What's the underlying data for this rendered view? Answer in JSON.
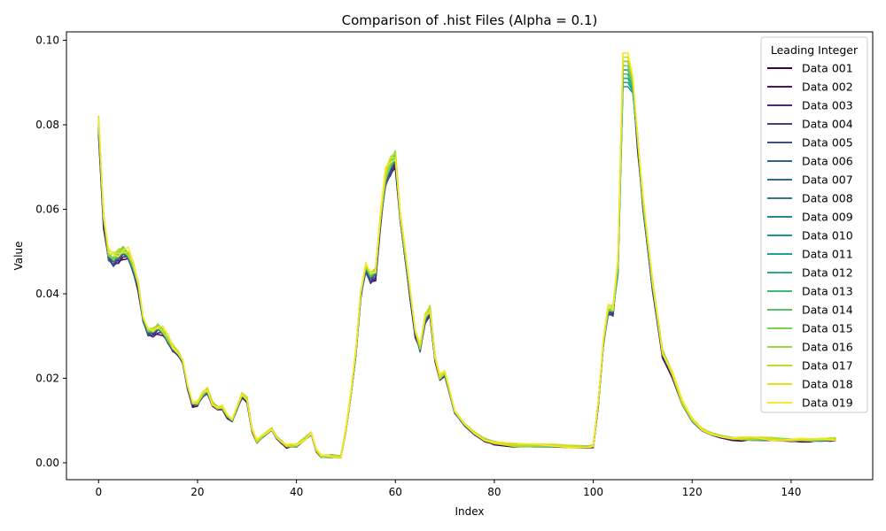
{
  "chart_data": {
    "type": "line",
    "title": "Comparison of .hist Files (Alpha = 0.1)",
    "xlabel": "Index",
    "ylabel": "Value",
    "xlim": [
      -6.5,
      156.5
    ],
    "ylim": [
      -0.004,
      0.102
    ],
    "xticks": [
      0,
      20,
      40,
      60,
      80,
      100,
      120,
      140
    ],
    "xtick_labels": [
      "0",
      "20",
      "40",
      "60",
      "80",
      "100",
      "120",
      "140"
    ],
    "yticks": [
      0.0,
      0.02,
      0.04,
      0.06,
      0.08,
      0.1
    ],
    "ytick_labels": [
      "0.00",
      "0.02",
      "0.04",
      "0.06",
      "0.08",
      "0.10"
    ],
    "grid": false,
    "legend": {
      "title": "Leading Integer",
      "placement": "top-right"
    },
    "base_curve": {
      "x": [
        0,
        1,
        2,
        3,
        4,
        5,
        6,
        7,
        8,
        9,
        10,
        11,
        12,
        13,
        14,
        15,
        16,
        17,
        18,
        19,
        20,
        21,
        22,
        23,
        24,
        25,
        26,
        27,
        28,
        29,
        30,
        31,
        32,
        33,
        34,
        35,
        36,
        37,
        38,
        39,
        40,
        41,
        42,
        43,
        44,
        45,
        46,
        47,
        48,
        49,
        50,
        51,
        52,
        53,
        54,
        55,
        56,
        57,
        58,
        59,
        60,
        61,
        62,
        63,
        64,
        65,
        66,
        67,
        68,
        69,
        70,
        72,
        74,
        76,
        78,
        80,
        84,
        88,
        92,
        96,
        99,
        100,
        101,
        102,
        103,
        104,
        105,
        106,
        107,
        108,
        109,
        110,
        112,
        114,
        116,
        118,
        120,
        122,
        124,
        126,
        128,
        130,
        132,
        134,
        136,
        138,
        140,
        142,
        144,
        146,
        148,
        149
      ],
      "y": [
        0.08,
        0.058,
        0.049,
        0.048,
        0.049,
        0.05,
        0.049,
        0.046,
        0.042,
        0.034,
        0.031,
        0.031,
        0.032,
        0.031,
        0.029,
        0.027,
        0.026,
        0.024,
        0.018,
        0.014,
        0.014,
        0.016,
        0.017,
        0.014,
        0.013,
        0.013,
        0.011,
        0.01,
        0.013,
        0.016,
        0.015,
        0.008,
        0.005,
        0.006,
        0.007,
        0.008,
        0.006,
        0.005,
        0.004,
        0.004,
        0.004,
        0.005,
        0.006,
        0.007,
        0.003,
        0.0015,
        0.0015,
        0.0015,
        0.0015,
        0.0015,
        0.008,
        0.016,
        0.026,
        0.04,
        0.046,
        0.044,
        0.045,
        0.058,
        0.067,
        0.07,
        0.072,
        0.058,
        0.049,
        0.04,
        0.031,
        0.027,
        0.034,
        0.036,
        0.025,
        0.02,
        0.021,
        0.012,
        0.009,
        0.007,
        0.0055,
        0.0048,
        0.0041,
        0.004,
        0.004,
        0.0038,
        0.0038,
        0.004,
        0.014,
        0.028,
        0.036,
        0.036,
        0.045,
        0.09,
        0.09,
        0.088,
        0.076,
        0.062,
        0.042,
        0.026,
        0.021,
        0.014,
        0.01,
        0.0078,
        0.0068,
        0.0062,
        0.0058,
        0.0057,
        0.0056,
        0.0056,
        0.0056,
        0.0055,
        0.0054,
        0.0054,
        0.0053,
        0.0054,
        0.0055,
        0.0056
      ]
    },
    "series": [
      {
        "name": "Data 001",
        "color": "#440154",
        "peak": 0.092
      },
      {
        "name": "Data 002",
        "color": "#481769",
        "peak": 0.093
      },
      {
        "name": "Data 003",
        "color": "#472a7a",
        "peak": 0.094
      },
      {
        "name": "Data 004",
        "color": "#433d84",
        "peak": 0.095
      },
      {
        "name": "Data 005",
        "color": "#3d4e8a",
        "peak": 0.094
      },
      {
        "name": "Data 006",
        "color": "#355e8d",
        "peak": 0.093
      },
      {
        "name": "Data 007",
        "color": "#2e6d8e",
        "peak": 0.092
      },
      {
        "name": "Data 008",
        "color": "#297b8e",
        "peak": 0.091
      },
      {
        "name": "Data 009",
        "color": "#23898e",
        "peak": 0.09
      },
      {
        "name": "Data 010",
        "color": "#1f968b",
        "peak": 0.089
      },
      {
        "name": "Data 011",
        "color": "#20a386",
        "peak": 0.09
      },
      {
        "name": "Data 012",
        "color": "#29af7f",
        "peak": 0.091
      },
      {
        "name": "Data 013",
        "color": "#3dbc74",
        "peak": 0.092
      },
      {
        "name": "Data 014",
        "color": "#56c667",
        "peak": 0.093
      },
      {
        "name": "Data 015",
        "color": "#75d054",
        "peak": 0.094
      },
      {
        "name": "Data 016",
        "color": "#95d840",
        "peak": 0.095
      },
      {
        "name": "Data 017",
        "color": "#bade28",
        "peak": 0.096
      },
      {
        "name": "Data 018",
        "color": "#dde318",
        "peak": 0.097
      },
      {
        "name": "Data 019",
        "color": "#fde725",
        "peak": 0.097
      }
    ]
  }
}
